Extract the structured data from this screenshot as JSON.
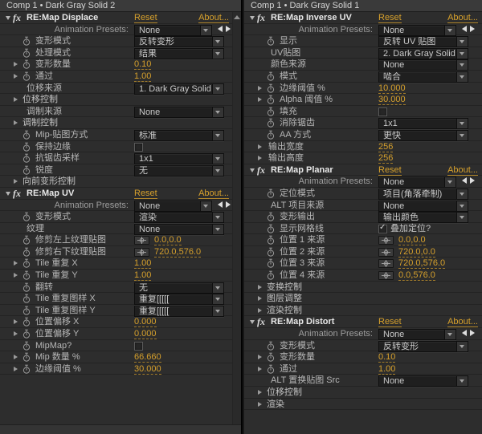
{
  "accent_orange": "#d6a02c",
  "panels": [
    {
      "title": "Comp 1 • Dark Gray Solid 2",
      "has_scrollbar": true,
      "effects": [
        {
          "name": "RE:Map Displace",
          "reset": "Reset",
          "about": "About...",
          "presets_label": "Animation Presets:",
          "presets_value": "None",
          "rows": [
            {
              "type": "dropdown",
              "sw": true,
              "label": "变形模式",
              "value": "反转变形"
            },
            {
              "type": "dropdown",
              "sw": true,
              "label": "处理模式",
              "value": "结果"
            },
            {
              "type": "number",
              "arrow": true,
              "sw": true,
              "label": "变形数量",
              "value": "0.10"
            },
            {
              "type": "number",
              "arrow": true,
              "sw": true,
              "label": "通过",
              "value": "1.00"
            },
            {
              "type": "dropdown",
              "label": "位移来源",
              "value": "1. Dark Gray Solid 2"
            },
            {
              "type": "group",
              "label": "位移控制"
            },
            {
              "type": "dropdown",
              "label": "调制来源",
              "value": "None"
            },
            {
              "type": "group",
              "label": "调制控制"
            },
            {
              "type": "dropdown",
              "sw": true,
              "label": "Mip-贴图方式",
              "value": "标准"
            },
            {
              "type": "checkbox",
              "sw": true,
              "label": "保持边缘",
              "checked": false,
              "text": ""
            },
            {
              "type": "dropdown",
              "sw": true,
              "label": "抗锯齿采样",
              "value": "1x1"
            },
            {
              "type": "dropdown",
              "sw": true,
              "label": "锐度",
              "value": "无"
            },
            {
              "type": "group",
              "label": "向前变形控制"
            }
          ]
        },
        {
          "name": "RE:Map UV",
          "reset": "Reset",
          "about": "About...",
          "presets_label": "Animation Presets:",
          "presets_value": "None",
          "rows": [
            {
              "type": "dropdown",
              "sw": true,
              "label": "变形模式",
              "value": "渲染"
            },
            {
              "type": "dropdown",
              "label": "纹理",
              "value": "None"
            },
            {
              "type": "point",
              "sw": true,
              "label": "修剪左上纹理贴图",
              "value": "0.0,0.0"
            },
            {
              "type": "point",
              "sw": true,
              "label": "修剪右下纹理贴图",
              "value": "720.0,576.0"
            },
            {
              "type": "number",
              "arrow": true,
              "sw": true,
              "label": "Tile 重复 X",
              "value": "1.00"
            },
            {
              "type": "number",
              "arrow": true,
              "sw": true,
              "label": "Tile 重复 Y",
              "value": "1.00"
            },
            {
              "type": "dropdown",
              "sw": true,
              "label": "翻转",
              "value": "无"
            },
            {
              "type": "dropdown",
              "sw": true,
              "label": "Tile 重复图样 X",
              "value": "重复[[[[["
            },
            {
              "type": "dropdown",
              "sw": true,
              "label": "Tile 重复图样 Y",
              "value": "重复[[[[["
            },
            {
              "type": "number",
              "arrow": true,
              "sw": true,
              "label": "位置偏移 X",
              "value": "0.000"
            },
            {
              "type": "number",
              "arrow": true,
              "sw": true,
              "label": "位置偏移 Y",
              "value": "0.000"
            },
            {
              "type": "checkbox",
              "sw": true,
              "label": "MipMap?",
              "checked": false,
              "text": ""
            },
            {
              "type": "number",
              "arrow": true,
              "sw": true,
              "label": "Mip 数量 %",
              "value": "66.660"
            },
            {
              "type": "number",
              "arrow": true,
              "sw": true,
              "label": "边缘阈值 %",
              "value": "30.000"
            }
          ]
        }
      ]
    },
    {
      "title": "Comp 1 • Dark Gray Solid 1",
      "has_scrollbar": false,
      "effects": [
        {
          "name": "RE:Map Inverse UV",
          "reset": "Reset",
          "about": "About...",
          "presets_label": "Animation Presets:",
          "presets_value": "None",
          "rows": [
            {
              "type": "dropdown",
              "sw": true,
              "label": "显示",
              "value": "反转 UV 贴图"
            },
            {
              "type": "dropdown",
              "label": "UV贴图",
              "value": "2. Dark Gray Solid 1"
            },
            {
              "type": "dropdown",
              "label": "颜色来源",
              "value": "None"
            },
            {
              "type": "dropdown",
              "sw": true,
              "label": "模式",
              "value": "啮合"
            },
            {
              "type": "number",
              "arrow": true,
              "sw": true,
              "label": "边缘阈值 %",
              "value": "10.000"
            },
            {
              "type": "number",
              "arrow": true,
              "sw": true,
              "label": "Alpha 阈值 %",
              "value": "30.000"
            },
            {
              "type": "checkbox",
              "sw": true,
              "label": "填充",
              "checked": false,
              "text": ""
            },
            {
              "type": "dropdown",
              "sw": true,
              "label": "消除锯齿",
              "value": "1x1"
            },
            {
              "type": "dropdown",
              "sw": true,
              "label": "AA 方式",
              "value": "更快"
            },
            {
              "type": "number",
              "arrow": true,
              "label": "输出宽度",
              "value": "256"
            },
            {
              "type": "number",
              "arrow": true,
              "label": "输出高度",
              "value": "256"
            }
          ]
        },
        {
          "name": "RE:Map Planar",
          "reset": "Reset",
          "about": "About...",
          "presets_label": "Animation Presets:",
          "presets_value": "None",
          "rows": [
            {
              "type": "dropdown",
              "sw": true,
              "label": "定位模式",
              "value": "项目(角落牵制)"
            },
            {
              "type": "dropdown",
              "label": "ALT 项目来源",
              "value": "None"
            },
            {
              "type": "dropdown",
              "sw": true,
              "label": "变形输出",
              "value": "输出颜色"
            },
            {
              "type": "checkbox",
              "sw": true,
              "label": "显示网格线",
              "checked": true,
              "text": "叠加定位?"
            },
            {
              "type": "point",
              "sw": true,
              "label": "位置 1 来源",
              "value": "0.0,0.0"
            },
            {
              "type": "point",
              "sw": true,
              "label": "位置 2 来源",
              "value": "720.0,0.0"
            },
            {
              "type": "point",
              "sw": true,
              "label": "位置 3 来源",
              "value": "720.0,576.0"
            },
            {
              "type": "point",
              "sw": true,
              "label": "位置 4 来源",
              "value": "0.0,576.0"
            },
            {
              "type": "group",
              "label": "变换控制"
            },
            {
              "type": "group",
              "label": "图层调整"
            },
            {
              "type": "group",
              "label": "渲染控制"
            }
          ]
        },
        {
          "name": "RE:Map Distort",
          "reset": "Reset",
          "about": "About...",
          "presets_label": "Animation Presets:",
          "presets_value": "None",
          "rows": [
            {
              "type": "dropdown",
              "sw": true,
              "label": "变形模式",
              "value": "反转变形"
            },
            {
              "type": "number",
              "arrow": true,
              "sw": true,
              "label": "变形数量",
              "value": "0.10"
            },
            {
              "type": "number",
              "arrow": true,
              "sw": true,
              "label": "通过",
              "value": "1.00"
            },
            {
              "type": "dropdown",
              "label": "ALT 置换贴图 Src",
              "value": "None"
            },
            {
              "type": "group",
              "label": "位移控制"
            },
            {
              "type": "group",
              "label": "渲染"
            }
          ]
        }
      ]
    }
  ]
}
